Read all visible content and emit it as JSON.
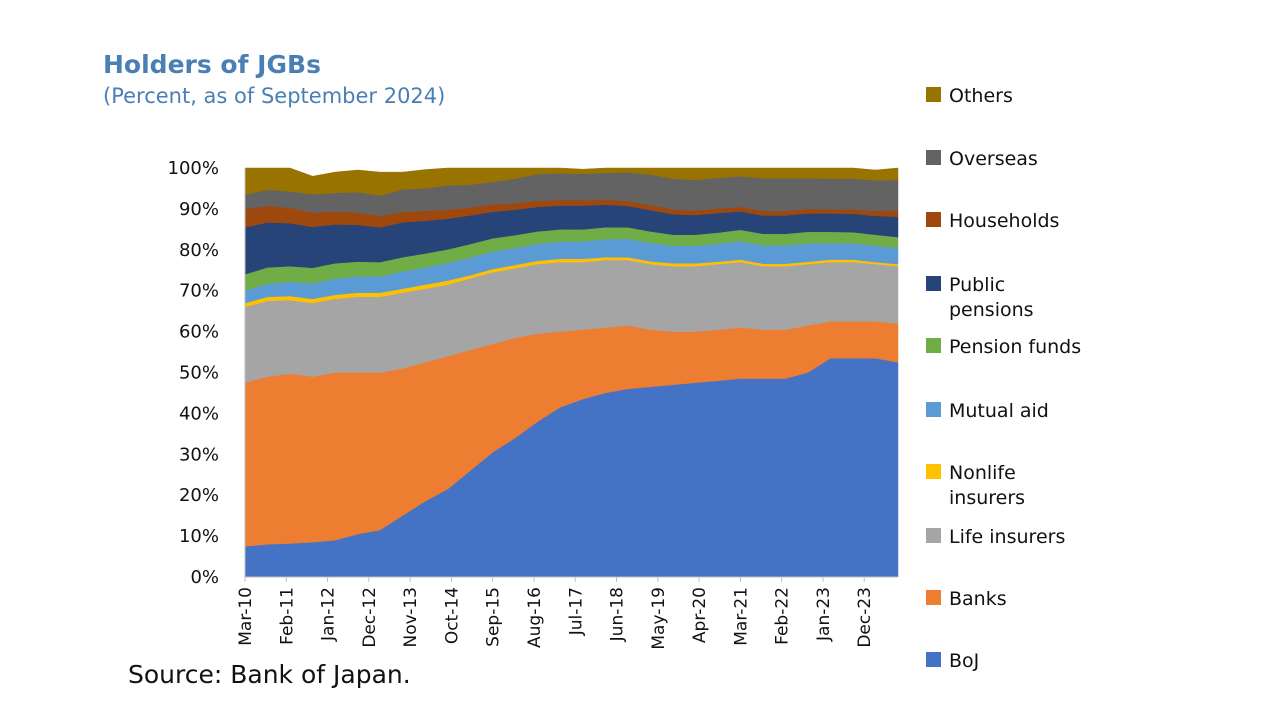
{
  "title": "Holders of JGBs",
  "subtitle": "(Percent, as of September 2024)",
  "source": "Source: Bank of Japan.",
  "chart_data": {
    "type": "area",
    "stacked": true,
    "title": "Holders of JGBs",
    "subtitle": "(Percent, as of September 2024)",
    "xlabel": "",
    "ylabel": "",
    "ylim": [
      0,
      100
    ],
    "y_ticks": [
      "0%",
      "10%",
      "20%",
      "30%",
      "40%",
      "50%",
      "60%",
      "70%",
      "80%",
      "90%",
      "100%"
    ],
    "x_tick_labels": [
      "Mar-10",
      "Feb-11",
      "Jan-12",
      "Dec-12",
      "Nov-13",
      "Oct-14",
      "Sep-15",
      "Aug-16",
      "Jul-17",
      "Jun-18",
      "May-19",
      "Apr-20",
      "Mar-21",
      "Feb-22",
      "Jan-23",
      "Dec-23"
    ],
    "x": [
      "Mar-10",
      "Sep-10",
      "Mar-11",
      "Sep-11",
      "Mar-12",
      "Sep-12",
      "Mar-13",
      "Sep-13",
      "Mar-14",
      "Sep-14",
      "Mar-15",
      "Sep-15",
      "Mar-16",
      "Sep-16",
      "Mar-17",
      "Sep-17",
      "Mar-18",
      "Sep-18",
      "Mar-19",
      "Sep-19",
      "Mar-20",
      "Sep-20",
      "Mar-21",
      "Sep-21",
      "Mar-22",
      "Sep-22",
      "Mar-23",
      "Sep-23",
      "Mar-24",
      "Sep-24"
    ],
    "series": [
      {
        "name": "BoJ",
        "color": "#4472c4",
        "values": [
          7.5,
          8,
          8.2,
          8.5,
          9,
          10.5,
          11.5,
          15,
          18.5,
          21.5,
          26,
          30.5,
          34,
          38,
          41.5,
          43.5,
          45,
          46,
          46.5,
          47,
          47.5,
          48,
          48.5,
          48.5,
          48.5,
          50,
          53.5,
          53.5,
          53.5,
          52.5
        ]
      },
      {
        "name": "Banks",
        "color": "#ed7d31",
        "values": [
          40,
          41,
          41.5,
          40.5,
          41,
          39.5,
          38.5,
          36,
          34,
          32.5,
          29.5,
          26.5,
          24.5,
          21.5,
          18.5,
          17,
          16,
          15.5,
          14,
          13,
          12.5,
          12.5,
          12.5,
          12,
          12,
          11.5,
          9,
          9,
          9,
          9.5
        ]
      },
      {
        "name": "Life insurers",
        "color": "#a5a5a5",
        "values": [
          18.5,
          18.5,
          18,
          18,
          18,
          18.5,
          18.5,
          18.5,
          18,
          17.5,
          17.5,
          17.5,
          17,
          17,
          17,
          16.5,
          16.5,
          16,
          16,
          16,
          16,
          16,
          16,
          15.5,
          15.5,
          15,
          14.5,
          14.5,
          14,
          14
        ]
      },
      {
        "name": "Nonlife insurers",
        "color": "#ffc000",
        "values": [
          1,
          1,
          1,
          1,
          1,
          1,
          1,
          1,
          1,
          1,
          0.8,
          0.8,
          0.8,
          0.8,
          0.8,
          0.8,
          0.7,
          0.7,
          0.7,
          0.7,
          0.7,
          0.6,
          0.6,
          0.6,
          0.6,
          0.6,
          0.6,
          0.6,
          0.5,
          0.5
        ]
      },
      {
        "name": "Mutual aid",
        "color": "#5b9bd5",
        "values": [
          3,
          3.2,
          3.5,
          3.8,
          4,
          4,
          4,
          4.2,
          4.2,
          4.3,
          4.3,
          4.3,
          4.2,
          4.2,
          4.2,
          4.3,
          4.4,
          4.5,
          4.5,
          4.3,
          4.3,
          4.4,
          4.5,
          4.5,
          4.5,
          4.5,
          4,
          4,
          4,
          4
        ]
      },
      {
        "name": "Pension funds",
        "color": "#70ad47",
        "values": [
          4,
          4,
          3.8,
          3.8,
          3.7,
          3.6,
          3.5,
          3.5,
          3.4,
          3.3,
          3.3,
          3.2,
          3.1,
          3,
          3,
          2.9,
          2.9,
          2.8,
          2.8,
          2.7,
          2.7,
          2.7,
          2.8,
          2.8,
          2.8,
          2.8,
          2.8,
          2.7,
          2.7,
          2.6
        ]
      },
      {
        "name": "Public pensions",
        "color": "#264478",
        "values": [
          11.5,
          11,
          10.5,
          10,
          9.5,
          9,
          8.5,
          8.5,
          8,
          7.5,
          7,
          6.5,
          6.2,
          6,
          5.8,
          5.8,
          5.5,
          5.2,
          5.2,
          5,
          4.8,
          4.8,
          4.5,
          4.5,
          4.5,
          4.5,
          4.5,
          4.5,
          4.6,
          5
        ]
      },
      {
        "name": "Households",
        "color": "#9e480e",
        "values": [
          4.5,
          4,
          3.8,
          3.5,
          3.2,
          3,
          2.8,
          2.6,
          2.4,
          2.2,
          2,
          1.8,
          1.6,
          1.5,
          1.4,
          1.3,
          1.3,
          1.2,
          1.2,
          1.2,
          1.1,
          1.1,
          1.1,
          1.1,
          1.1,
          1.1,
          1,
          1.1,
          1.2,
          1.5
        ]
      },
      {
        "name": "Overseas",
        "color": "#636363",
        "values": [
          3.5,
          4,
          4,
          4.5,
          4.5,
          5,
          5,
          5.5,
          5.5,
          6,
          5.5,
          5.5,
          6,
          6.5,
          6.5,
          6.5,
          6.5,
          7,
          7.5,
          7.5,
          7.5,
          7.5,
          7.5,
          8,
          8,
          7.5,
          7.5,
          7.5,
          7.5,
          7.5
        ]
      },
      {
        "name": "Others",
        "color": "#997300",
        "values": [
          6.5,
          5.3,
          5.7,
          4.4,
          5.1,
          5.4,
          5.7,
          4.2,
          4.6,
          4.2,
          4.1,
          3.4,
          2.6,
          1.5,
          1.3,
          1.1,
          1.2,
          1.1,
          1.6,
          2.6,
          2.9,
          2.4,
          2,
          2.5,
          2.5,
          2.5,
          2.6,
          2.6,
          2.5,
          2.9
        ]
      }
    ]
  },
  "legend": [
    {
      "label": "Others",
      "color": "#997300"
    },
    {
      "label": "Overseas",
      "color": "#636363"
    },
    {
      "label": "Households",
      "color": "#9e480e"
    },
    {
      "label": "Public pensions",
      "color": "#264478"
    },
    {
      "label": "Pension funds",
      "color": "#70ad47"
    },
    {
      "label": "Mutual aid",
      "color": "#5b9bd5"
    },
    {
      "label": "Nonlife insurers",
      "color": "#ffc000"
    },
    {
      "label": "Life insurers",
      "color": "#a5a5a5"
    },
    {
      "label": "Banks",
      "color": "#ed7d31"
    },
    {
      "label": "BoJ",
      "color": "#4472c4"
    }
  ]
}
